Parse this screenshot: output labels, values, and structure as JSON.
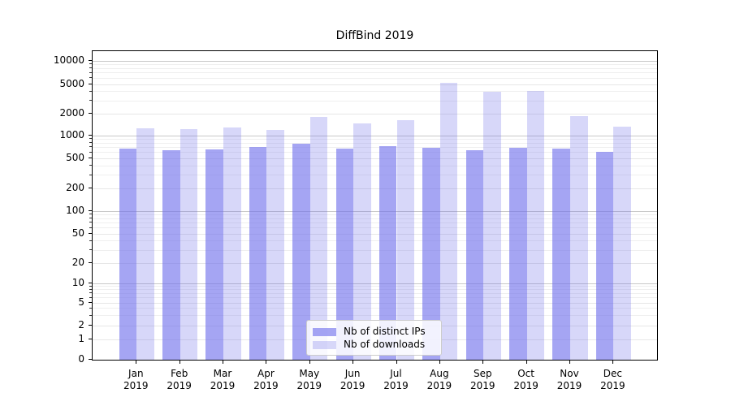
{
  "chart_data": {
    "type": "bar",
    "title": "DiffBind 2019",
    "year_label": "2019",
    "categories": [
      "Jan",
      "Feb",
      "Mar",
      "Apr",
      "May",
      "Jun",
      "Jul",
      "Aug",
      "Sep",
      "Oct",
      "Nov",
      "Dec"
    ],
    "series": [
      {
        "name": "Nb of distinct IPs",
        "color": "#a9a9f1",
        "values": [
          670,
          635,
          660,
          700,
          780,
          670,
          720,
          695,
          635,
          695,
          670,
          615
        ]
      },
      {
        "name": "Nb of downloads",
        "color": "#d9d9f8",
        "values": [
          1260,
          1230,
          1290,
          1200,
          1790,
          1480,
          1620,
          5300,
          3950,
          4050,
          1870,
          1330
        ]
      }
    ],
    "xlabel": "",
    "ylabel": "",
    "yscale": "symlog",
    "yticks": [
      0,
      1,
      2,
      5,
      10,
      20,
      50,
      100,
      200,
      500,
      1000,
      2000,
      5000,
      10000
    ],
    "ylim": [
      0,
      13500
    ],
    "grid": true,
    "gridline_color_major": "#c8c8c8",
    "gridline_color_minor": "#efefef",
    "legend_position": "lower center",
    "background_color": "#ffffff"
  }
}
